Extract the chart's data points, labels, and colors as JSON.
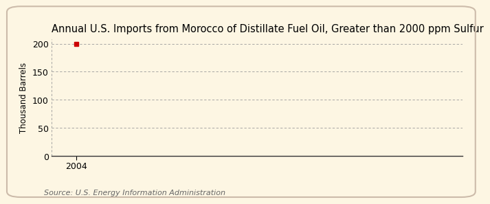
{
  "title": "Annual U.S. Imports from Morocco of Distillate Fuel Oil, Greater than 2000 ppm Sulfur",
  "ylabel": "Thousand Barrels",
  "source_text": "Source: U.S. Energy Information Administration",
  "background_color": "#fdf6e3",
  "plot_bg_color": "#fdf6e3",
  "xlim": [
    2003.4,
    2013.5
  ],
  "ylim": [
    0,
    208
  ],
  "yticks": [
    0,
    50,
    100,
    150,
    200
  ],
  "xticks": [
    2004
  ],
  "xticklabels": [
    "2004"
  ],
  "data_x": [
    2004
  ],
  "data_y": [
    200
  ],
  "marker_color": "#cc0000",
  "grid_color": "#999999",
  "title_fontsize": 10.5,
  "label_fontsize": 8.5,
  "tick_fontsize": 9,
  "source_fontsize": 8
}
